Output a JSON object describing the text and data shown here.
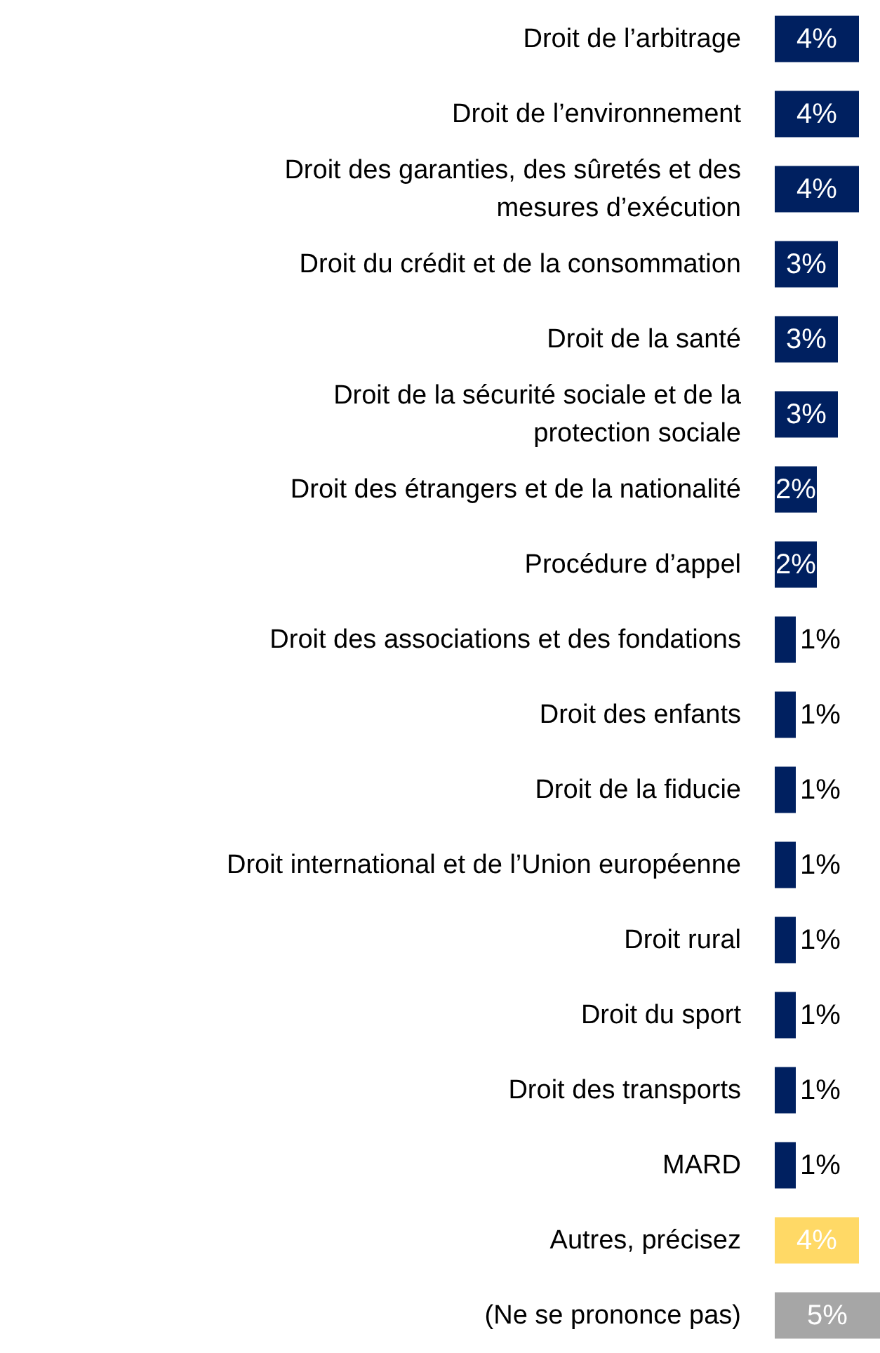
{
  "chart_data": {
    "type": "bar",
    "orientation": "horizontal",
    "value_labels": [
      "4%",
      "4%",
      "4%",
      "3%",
      "3%",
      "3%",
      "2%",
      "2%",
      "1%",
      "1%",
      "1%",
      "1%",
      "1%",
      "1%",
      "1%",
      "1%",
      "4%",
      "5%"
    ],
    "categories": [
      "Droit de l’arbitrage",
      "Droit de l’environnement",
      "Droit des garanties, des sûretés et des\nmesures d’exécution",
      "Droit du crédit et de la consommation",
      "Droit de la santé",
      "Droit de la sécurité sociale et de la\nprotection sociale",
      "Droit des étrangers et de la nationalité",
      "Procédure d’appel",
      "Droit des associations et des fondations",
      "Droit des enfants",
      "Droit de la fiducie",
      "Droit international et de l’Union européenne",
      "Droit rural",
      "Droit du sport",
      "Droit des transports",
      "MARD",
      "Autres, précisez",
      "(Ne se prononce pas)"
    ],
    "values": [
      4,
      4,
      4,
      3,
      3,
      3,
      2,
      2,
      1,
      1,
      1,
      1,
      1,
      1,
      1,
      1,
      4,
      5
    ],
    "colors": [
      "#002060",
      "#002060",
      "#002060",
      "#002060",
      "#002060",
      "#002060",
      "#002060",
      "#002060",
      "#002060",
      "#002060",
      "#002060",
      "#002060",
      "#002060",
      "#002060",
      "#002060",
      "#002060",
      "#ffd966",
      "#a6a6a6"
    ],
    "grid": false,
    "tick_labels": "y"
  }
}
